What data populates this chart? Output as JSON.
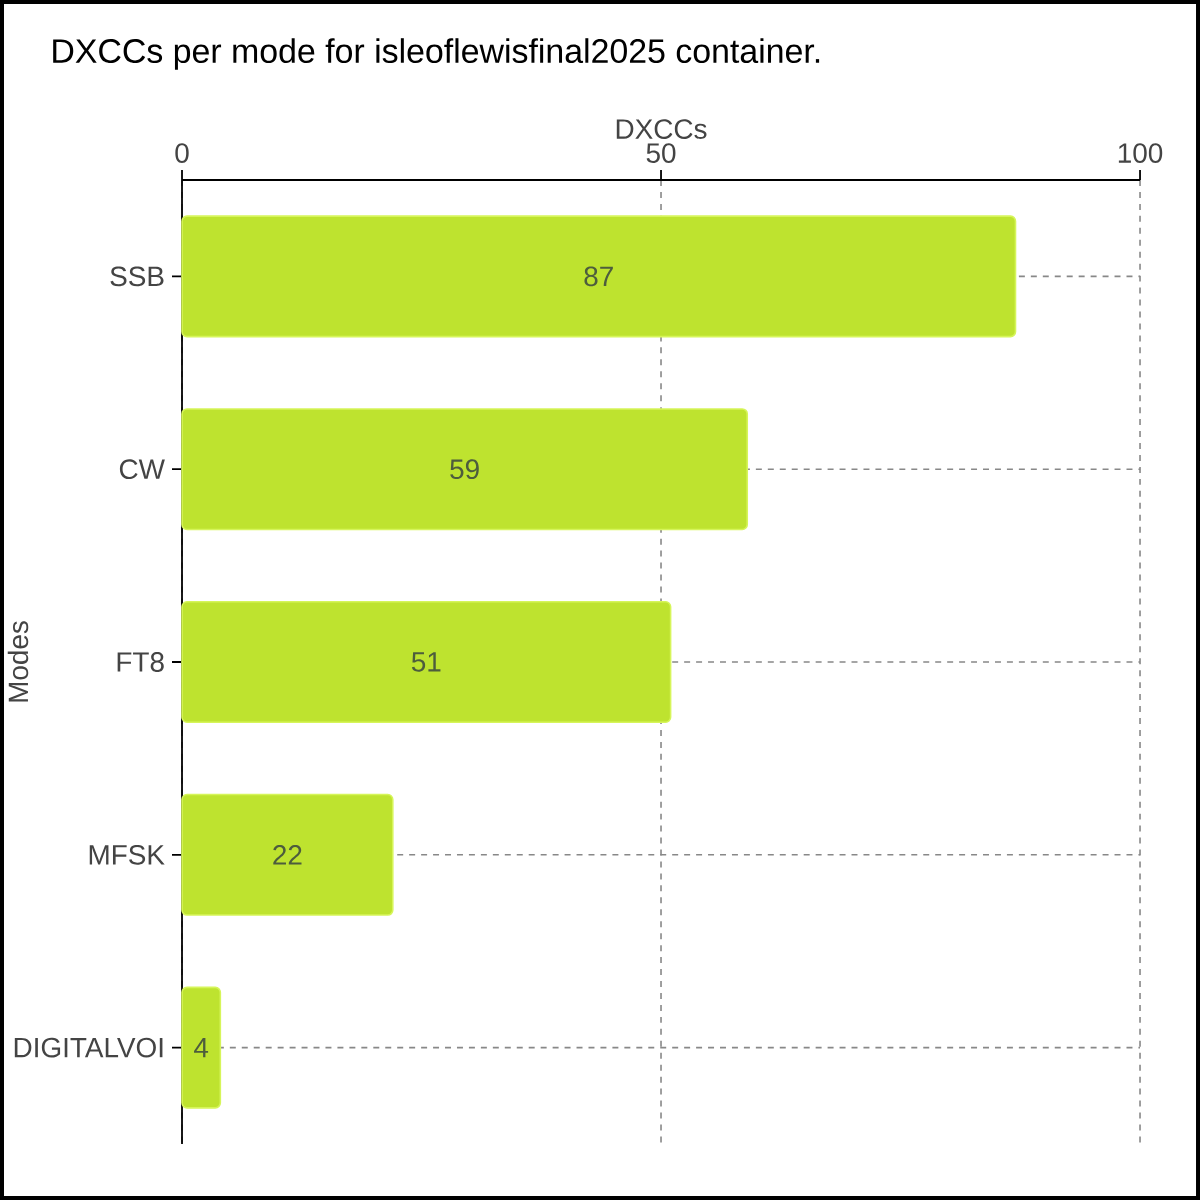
{
  "chart_data": {
    "type": "bar",
    "orientation": "horizontal",
    "title": "DXCCs per mode for isleoflewisfinal2025 container.",
    "xlabel": "DXCCs",
    "ylabel": "Modes",
    "categories": [
      "SSB",
      "CW",
      "FT8",
      "MFSK",
      "DIGITALVOI"
    ],
    "values": [
      87,
      59,
      51,
      22,
      4
    ],
    "color": "#bee32f",
    "xlim": [
      0,
      100
    ],
    "xticks": [
      0,
      50,
      100
    ],
    "grid": true,
    "data_labels": true
  }
}
